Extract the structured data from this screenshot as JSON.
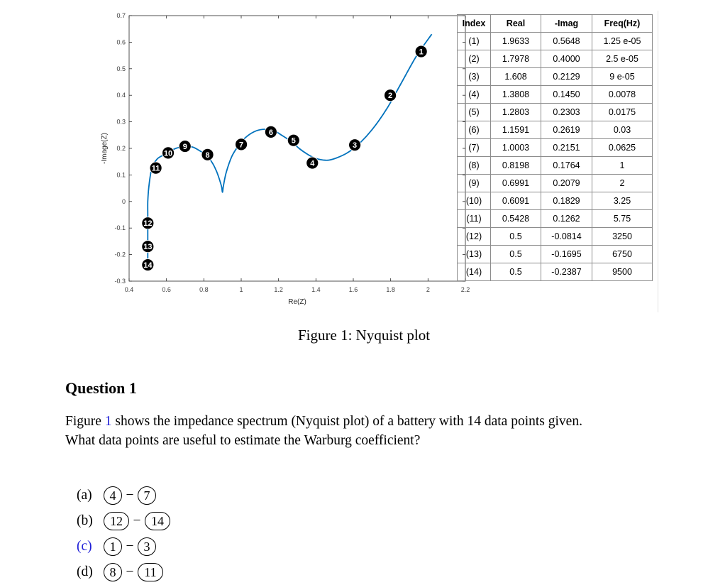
{
  "chart_data": {
    "type": "line",
    "xlabel": "Re(Z)",
    "ylabel": "-Image(Z)",
    "xlim": [
      0.4,
      2.2
    ],
    "ylim": [
      -0.3,
      0.7
    ],
    "xticks": [
      "0.4",
      "0.6",
      "0.8",
      "1",
      "1.2",
      "1.4",
      "1.6",
      "1.8",
      "2",
      "2.2"
    ],
    "yticks": [
      "-0.3",
      "-0.2",
      "-0.1",
      "0",
      "0.1",
      "0.2",
      "0.3",
      "0.4",
      "0.5",
      "0.6",
      "0.7"
    ],
    "line_color": "#0072bd",
    "curve": {
      "x": [
        0.5,
        0.5,
        0.5,
        0.5,
        0.5,
        0.5,
        0.505,
        0.52,
        0.55,
        0.6,
        0.65,
        0.7,
        0.74,
        0.78,
        0.82,
        0.85,
        0.87,
        0.885,
        0.895,
        0.9,
        0.905,
        0.92,
        0.95,
        0.99,
        1.03,
        1.08,
        1.13,
        1.18,
        1.22,
        1.27,
        1.31,
        1.35,
        1.38,
        1.41,
        1.44,
        1.47,
        1.51,
        1.56,
        1.62,
        1.7,
        1.78,
        1.86,
        1.94,
        2.02
      ],
      "y": [
        -0.25,
        -0.2,
        -0.15,
        -0.1,
        -0.05,
        0.0,
        0.05,
        0.12,
        0.16,
        0.18,
        0.2,
        0.206,
        0.205,
        0.19,
        0.17,
        0.14,
        0.11,
        0.08,
        0.055,
        0.035,
        0.06,
        0.11,
        0.17,
        0.215,
        0.245,
        0.266,
        0.272,
        0.265,
        0.248,
        0.225,
        0.2,
        0.18,
        0.168,
        0.16,
        0.156,
        0.156,
        0.164,
        0.18,
        0.21,
        0.27,
        0.35,
        0.45,
        0.55,
        0.63
      ]
    },
    "points": [
      {
        "label": "1",
        "x": 1.9633,
        "y": 0.5648
      },
      {
        "label": "2",
        "x": 1.7978,
        "y": 0.4
      },
      {
        "label": "3",
        "x": 1.608,
        "y": 0.2129
      },
      {
        "label": "4",
        "x": 1.3808,
        "y": 0.145
      },
      {
        "label": "5",
        "x": 1.2803,
        "y": 0.2303
      },
      {
        "label": "6",
        "x": 1.1591,
        "y": 0.2619
      },
      {
        "label": "7",
        "x": 1.0003,
        "y": 0.2151
      },
      {
        "label": "8",
        "x": 0.8198,
        "y": 0.1764
      },
      {
        "label": "9",
        "x": 0.6991,
        "y": 0.2079
      },
      {
        "label": "10",
        "x": 0.6091,
        "y": 0.1829
      },
      {
        "label": "11",
        "x": 0.5428,
        "y": 0.1262
      },
      {
        "label": "12",
        "x": 0.5,
        "y": -0.0814
      },
      {
        "label": "13",
        "x": 0.5,
        "y": -0.1695
      },
      {
        "label": "14",
        "x": 0.5,
        "y": -0.2387
      }
    ]
  },
  "table": {
    "headers": [
      "Index",
      "Real",
      "-Imag",
      "Freq(Hz)"
    ],
    "rows": [
      [
        "(1)",
        "1.9633",
        "0.5648",
        "1.25 e-05"
      ],
      [
        "(2)",
        "1.7978",
        "0.4000",
        "2.5 e-05"
      ],
      [
        "(3)",
        "1.608",
        "0.2129",
        "9 e-05"
      ],
      [
        "(4)",
        "1.3808",
        "0.1450",
        "0.0078"
      ],
      [
        "(5)",
        "1.2803",
        "0.2303",
        "0.0175"
      ],
      [
        "(6)",
        "1.1591",
        "0.2619",
        "0.03"
      ],
      [
        "(7)",
        "1.0003",
        "0.2151",
        "0.0625"
      ],
      [
        "(8)",
        "0.8198",
        "0.1764",
        "1"
      ],
      [
        "(9)",
        "0.6991",
        "0.2079",
        "2"
      ],
      [
        "(10)",
        "0.6091",
        "0.1829",
        "3.25"
      ],
      [
        "(11)",
        "0.5428",
        "0.1262",
        "5.75"
      ],
      [
        "(12)",
        "0.5",
        "-0.0814",
        "3250"
      ],
      [
        "(13)",
        "0.5",
        "-0.1695",
        "6750"
      ],
      [
        "(14)",
        "0.5",
        "-0.2387",
        "9500"
      ]
    ]
  },
  "caption": "Figure 1: Nyquist plot",
  "question": {
    "heading": "Question 1",
    "figure_word": "Figure",
    "figure_ref": "1",
    "body_rest": "shows the impedance spectrum (Nyquist plot) of a battery with 14 data points given.",
    "ask": "What data points are useful to estimate the Warburg coefficient?",
    "dash": "−",
    "options": [
      {
        "letter": "(a)",
        "from": "4",
        "to": "7"
      },
      {
        "letter": "(b)",
        "from": "12",
        "to": "14"
      },
      {
        "letter": "(c)",
        "from": "1",
        "to": "3"
      },
      {
        "letter": "(d)",
        "from": "8",
        "to": "11"
      }
    ]
  }
}
